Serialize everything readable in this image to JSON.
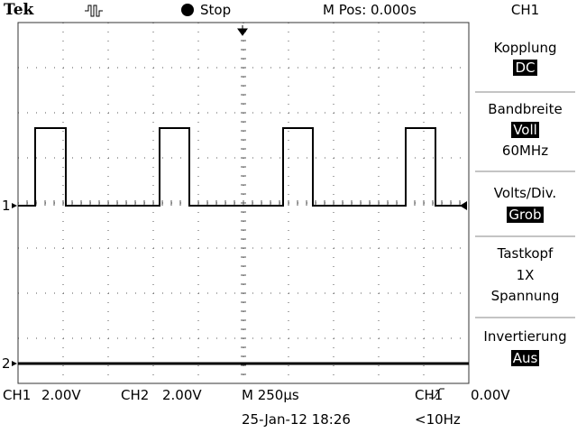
{
  "header": {
    "brand": "Tek",
    "status": "Stop",
    "position": "M Pos: 0.000s"
  },
  "menu": {
    "title": "CH1",
    "items": [
      {
        "label": "Kopplung",
        "value": "DC"
      },
      {
        "label": "Bandbreite",
        "value": "Voll",
        "note": "60MHz"
      },
      {
        "label": "Volts/Div.",
        "value": "Grob"
      },
      {
        "label": "Tastkopf",
        "lines": [
          "1X",
          "Spannung"
        ]
      },
      {
        "label": "Invertierung",
        "value": "Aus"
      }
    ]
  },
  "markers": [
    "1",
    "2"
  ],
  "footer": {
    "ch1": {
      "label": "CH1",
      "value": "2.00V"
    },
    "ch2": {
      "label": "CH2",
      "value": "2.00V"
    },
    "timebase": "M 250µs",
    "trigger": {
      "source": "CH1",
      "level": "0.00V"
    },
    "date": "25-Jan-12 18:26",
    "frequency": "<10Hz"
  }
}
